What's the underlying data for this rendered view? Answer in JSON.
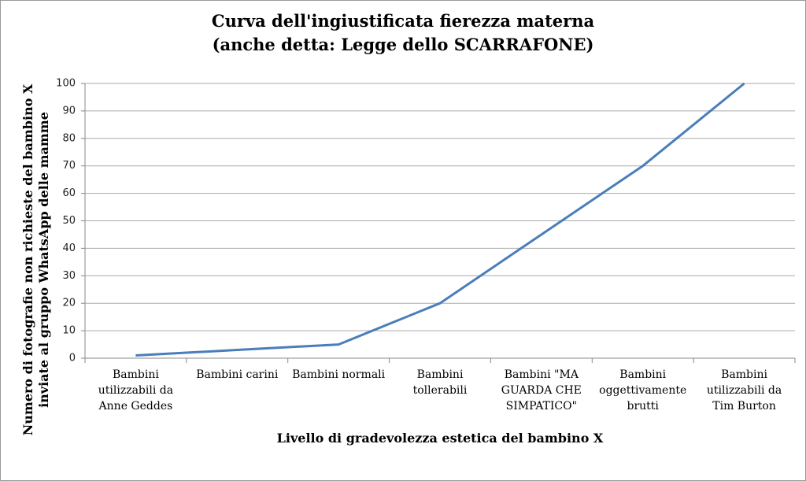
{
  "chart_data": {
    "type": "line",
    "title": "Curva dell'ingiustificata fierezza materna",
    "subtitle": "(anche detta: Legge dello SCARRAFONE)",
    "x_label": "Livello di gradevolezza estetica del bambino X",
    "y_label": [
      "Numero di fotografie non richieste del bambino X",
      "inviate al gruppo WhatsApp delle mamme"
    ],
    "categories": [
      "Bambini utilizzabili da Anne Geddes",
      "Bambini carini",
      "Bambini normali",
      "Bambini tollerabili",
      "Bambini \"MA GUARDA CHE SIMPATICO\"",
      "Bambini oggettivamente brutti",
      "Bambini utilizzabili da Tim Burton"
    ],
    "series": [
      {
        "color": "#4a7ebb",
        "values": [
          1,
          3,
          5,
          20,
          45,
          70,
          100
        ]
      }
    ],
    "ylim": [
      0,
      100
    ],
    "yticks": [
      0,
      10,
      20,
      30,
      40,
      50,
      60,
      70,
      80,
      90,
      100
    ],
    "grid": true
  }
}
